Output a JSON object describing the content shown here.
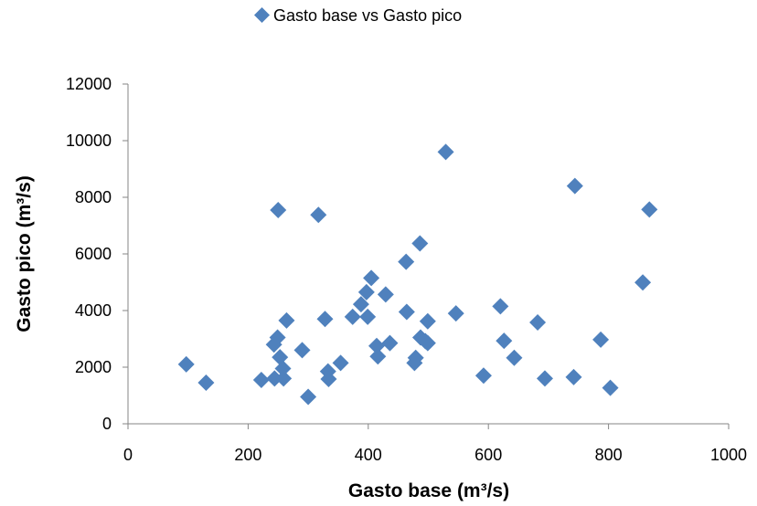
{
  "chart_data": {
    "type": "scatter",
    "legend": {
      "position": "top",
      "label": "Gasto base vs Gasto pico"
    },
    "xlabel": "Gasto base (m³/s)",
    "ylabel": "Gasto pico (m³/s)",
    "xlim": [
      0,
      1000
    ],
    "ylim": [
      0,
      12000
    ],
    "x_ticks": [
      "0",
      "200",
      "400",
      "600",
      "800",
      "1000"
    ],
    "y_ticks": [
      "0",
      "2000",
      "4000",
      "6000",
      "8000",
      "10000",
      "12000"
    ],
    "grid": false,
    "marker": "diamond",
    "colors": {
      "marker": "#4f81bd",
      "axis": "#868686"
    },
    "series": [
      {
        "name": "Gasto base vs Gasto pico",
        "points": [
          [
            97,
            2100
          ],
          [
            130,
            1450
          ],
          [
            222,
            1550
          ],
          [
            243,
            2800
          ],
          [
            244,
            1600
          ],
          [
            249,
            3050
          ],
          [
            250,
            7550
          ],
          [
            253,
            2350
          ],
          [
            258,
            1950
          ],
          [
            259,
            1600
          ],
          [
            264,
            3650
          ],
          [
            290,
            2600
          ],
          [
            300,
            950
          ],
          [
            317,
            7380
          ],
          [
            328,
            3700
          ],
          [
            333,
            1850
          ],
          [
            334,
            1580
          ],
          [
            354,
            2150
          ],
          [
            374,
            3780
          ],
          [
            388,
            4220
          ],
          [
            397,
            4650
          ],
          [
            399,
            3780
          ],
          [
            405,
            5150
          ],
          [
            414,
            2750
          ],
          [
            416,
            2380
          ],
          [
            429,
            4570
          ],
          [
            436,
            2850
          ],
          [
            463,
            5720
          ],
          [
            464,
            3950
          ],
          [
            477,
            2150
          ],
          [
            479,
            2330
          ],
          [
            486,
            6370
          ],
          [
            487,
            3050
          ],
          [
            495,
            2920
          ],
          [
            499,
            3620
          ],
          [
            499,
            2850
          ],
          [
            529,
            9600
          ],
          [
            546,
            3900
          ],
          [
            592,
            1700
          ],
          [
            620,
            4150
          ],
          [
            626,
            2930
          ],
          [
            643,
            2330
          ],
          [
            682,
            3580
          ],
          [
            694,
            1600
          ],
          [
            742,
            1650
          ],
          [
            744,
            8400
          ],
          [
            787,
            2970
          ],
          [
            803,
            1270
          ],
          [
            857,
            4990
          ],
          [
            868,
            7570
          ]
        ]
      }
    ]
  }
}
